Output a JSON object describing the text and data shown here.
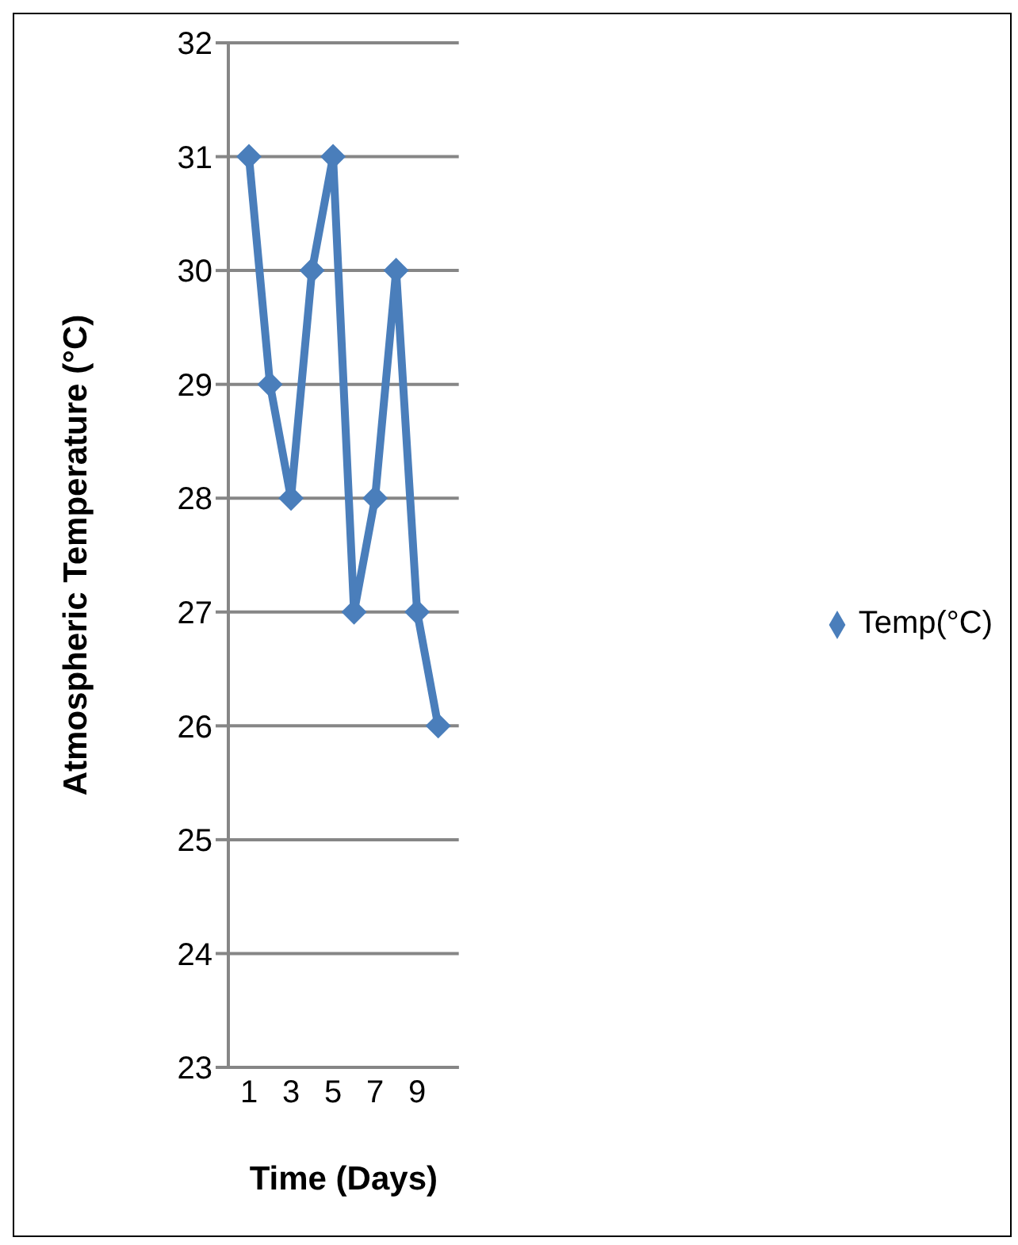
{
  "chart_data": {
    "type": "line",
    "xlabel": "Time (Days)",
    "ylabel": "Atmospheric Temperature (°C)",
    "categories": [
      "1",
      null,
      "3",
      null,
      "5",
      null,
      "7",
      null,
      "9",
      null
    ],
    "series": [
      {
        "name": "Temp(°C)",
        "color": "#4a7ebb",
        "values": [
          31,
          29,
          28,
          30,
          31,
          27,
          28,
          30,
          27,
          26
        ]
      }
    ],
    "ylim": [
      23,
      32
    ],
    "yticks": [
      23,
      24,
      25,
      26,
      27,
      28,
      29,
      30,
      31,
      32
    ],
    "grid": "y",
    "legend": "right",
    "marker": "diamond",
    "line_style": "solid"
  }
}
